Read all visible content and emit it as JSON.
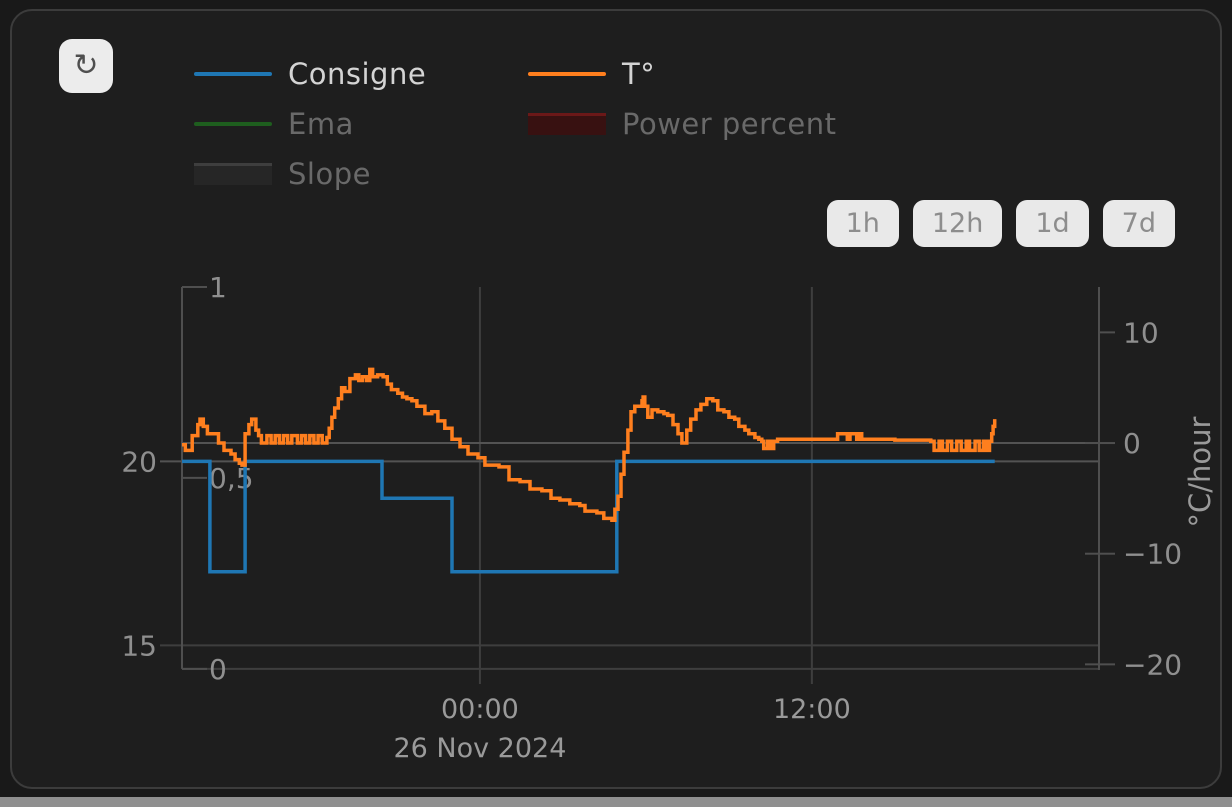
{
  "toolbar": {
    "refresh_icon": "↻",
    "ranges": [
      {
        "label": "1h"
      },
      {
        "label": "12h"
      },
      {
        "label": "1d"
      },
      {
        "label": "7d"
      }
    ]
  },
  "colors": {
    "card_bg": "#1e1e1e",
    "card_border": "#3c3c3c",
    "grid_major": "#535353",
    "grid_minor": "#3e3e3e",
    "axis_line": "#4f4f4f",
    "tick_label": "#8f8f8f",
    "x_label": "#9a9a9a",
    "legend_active_text": "#d4d4d4",
    "legend_dim_text": "#696969",
    "button_bg": "#e9e9e9",
    "button_text": "#8d8d8d",
    "page_strip": "#8f8f8f"
  },
  "chart_data": {
    "type": "line",
    "title": "",
    "x_axis": {
      "unit": "hours relative to 26 Nov 2024 00:00",
      "domain": [
        -10.77,
        22.38
      ],
      "ticks": [
        {
          "t": 0,
          "label": "00:00"
        },
        {
          "t": 12,
          "label": "12:00"
        }
      ],
      "date_label": "26 Nov 2024",
      "date_label_t": 0
    },
    "axes": {
      "temperature": {
        "side": "left",
        "unit": "°C",
        "domain": [
          14.33,
          24.74
        ],
        "ticks": [
          {
            "v": 20,
            "label": "20"
          },
          {
            "v": 15,
            "label": "15"
          }
        ]
      },
      "power": {
        "side": "left-inner",
        "unit": "fraction",
        "domain": [
          -0.003,
          1.0
        ],
        "ticks": [
          {
            "v": 1,
            "label": "1"
          },
          {
            "v": 0.5,
            "label": "0,5"
          },
          {
            "v": 0,
            "label": "0"
          }
        ]
      },
      "slope": {
        "side": "right",
        "unit": "°C/hour",
        "label": "°C/hour",
        "domain": [
          -20.51,
          14.1
        ],
        "ticks": [
          {
            "v": 10,
            "label": "10"
          },
          {
            "v": 0,
            "label": "0"
          },
          {
            "v": -10,
            "label": "−10"
          },
          {
            "v": -20,
            "label": "−20"
          }
        ]
      }
    },
    "gridlines": {
      "vertical_t": [
        0,
        12
      ],
      "horizontal": [
        {
          "axis": "slope",
          "v": 0,
          "major": true
        },
        {
          "axis": "temperature",
          "v": 20,
          "major": true
        },
        {
          "axis": "temperature",
          "v": 15,
          "major": false
        },
        {
          "axis": "power",
          "v": 0,
          "major": false
        }
      ]
    },
    "series": [
      {
        "name": "Consigne",
        "color": "#1f77b4",
        "axis": "temperature",
        "visible": true,
        "swatch": "line",
        "step": true,
        "points": [
          [
            -10.77,
            20
          ],
          [
            -9.76,
            20
          ],
          [
            -9.76,
            17
          ],
          [
            -8.49,
            17
          ],
          [
            -8.49,
            20
          ],
          [
            -3.54,
            20
          ],
          [
            -3.54,
            19
          ],
          [
            -1.01,
            19
          ],
          [
            -1.01,
            17
          ],
          [
            4.95,
            17
          ],
          [
            4.95,
            20
          ],
          [
            18.61,
            20
          ]
        ]
      },
      {
        "name": "T°",
        "color": "#ff7f1e",
        "axis": "temperature",
        "visible": true,
        "swatch": "line",
        "step": true,
        "points": [
          [
            -10.77,
            20.45
          ],
          [
            -10.65,
            20.3
          ],
          [
            -10.4,
            20.7
          ],
          [
            -10.2,
            21.0
          ],
          [
            -10.12,
            21.15
          ],
          [
            -10.0,
            20.95
          ],
          [
            -9.85,
            20.75
          ],
          [
            -9.6,
            20.75
          ],
          [
            -9.45,
            20.5
          ],
          [
            -9.25,
            20.3
          ],
          [
            -9.0,
            20.2
          ],
          [
            -8.85,
            20.05
          ],
          [
            -8.7,
            19.95
          ],
          [
            -8.6,
            19.9
          ],
          [
            -8.49,
            20.75
          ],
          [
            -8.35,
            21.0
          ],
          [
            -8.25,
            21.15
          ],
          [
            -8.1,
            20.85
          ],
          [
            -8.0,
            20.7
          ],
          [
            -7.9,
            20.5
          ],
          [
            -7.7,
            20.7
          ],
          [
            -7.55,
            20.5
          ],
          [
            -7.4,
            20.7
          ],
          [
            -7.25,
            20.5
          ],
          [
            -7.1,
            20.7
          ],
          [
            -6.95,
            20.5
          ],
          [
            -6.8,
            20.7
          ],
          [
            -6.6,
            20.5
          ],
          [
            -6.45,
            20.7
          ],
          [
            -6.3,
            20.5
          ],
          [
            -6.15,
            20.7
          ],
          [
            -6.0,
            20.5
          ],
          [
            -5.85,
            20.7
          ],
          [
            -5.7,
            20.5
          ],
          [
            -5.53,
            20.65
          ],
          [
            -5.45,
            20.9
          ],
          [
            -5.35,
            21.2
          ],
          [
            -5.25,
            21.45
          ],
          [
            -5.12,
            21.7
          ],
          [
            -5.0,
            22.0
          ],
          [
            -4.88,
            21.9
          ],
          [
            -4.7,
            22.25
          ],
          [
            -4.5,
            22.35
          ],
          [
            -4.38,
            22.2
          ],
          [
            -4.25,
            22.3
          ],
          [
            -4.1,
            22.2
          ],
          [
            -3.98,
            22.5
          ],
          [
            -3.88,
            22.3
          ],
          [
            -3.7,
            22.35
          ],
          [
            -3.5,
            22.3
          ],
          [
            -3.35,
            22.1
          ],
          [
            -3.2,
            21.95
          ],
          [
            -2.97,
            21.85
          ],
          [
            -2.8,
            21.75
          ],
          [
            -2.64,
            21.7
          ],
          [
            -2.46,
            21.65
          ],
          [
            -2.28,
            21.5
          ],
          [
            -1.99,
            21.3
          ],
          [
            -1.74,
            21.35
          ],
          [
            -1.52,
            21.1
          ],
          [
            -1.27,
            20.9
          ],
          [
            -1.01,
            20.6
          ],
          [
            -0.72,
            20.4
          ],
          [
            -0.43,
            20.2
          ],
          [
            -0.07,
            20.1
          ],
          [
            0.18,
            19.9
          ],
          [
            0.69,
            19.85
          ],
          [
            1.05,
            19.5
          ],
          [
            1.45,
            19.45
          ],
          [
            1.81,
            19.25
          ],
          [
            2.24,
            19.2
          ],
          [
            2.57,
            19.0
          ],
          [
            2.89,
            18.95
          ],
          [
            3.25,
            18.85
          ],
          [
            3.61,
            18.8
          ],
          [
            3.8,
            18.65
          ],
          [
            4.23,
            18.6
          ],
          [
            4.48,
            18.45
          ],
          [
            4.77,
            18.4
          ],
          [
            4.88,
            18.7
          ],
          [
            4.99,
            19.05
          ],
          [
            5.1,
            19.65
          ],
          [
            5.21,
            20.25
          ],
          [
            5.35,
            20.85
          ],
          [
            5.46,
            21.35
          ],
          [
            5.6,
            21.5
          ],
          [
            5.86,
            21.65
          ],
          [
            5.9,
            21.75
          ],
          [
            5.96,
            21.5
          ],
          [
            6.07,
            21.2
          ],
          [
            6.22,
            21.4
          ],
          [
            6.43,
            21.35
          ],
          [
            6.65,
            21.3
          ],
          [
            6.79,
            21.25
          ],
          [
            6.98,
            21.0
          ],
          [
            7.16,
            20.75
          ],
          [
            7.3,
            20.5
          ],
          [
            7.48,
            20.85
          ],
          [
            7.62,
            21.15
          ],
          [
            7.81,
            21.4
          ],
          [
            7.99,
            21.55
          ],
          [
            8.2,
            21.7
          ],
          [
            8.42,
            21.65
          ],
          [
            8.6,
            21.4
          ],
          [
            8.82,
            21.35
          ],
          [
            9.0,
            21.2
          ],
          [
            9.21,
            21.15
          ],
          [
            9.36,
            20.95
          ],
          [
            9.58,
            20.85
          ],
          [
            9.72,
            20.75
          ],
          [
            9.94,
            20.65
          ],
          [
            10.08,
            20.6
          ],
          [
            10.19,
            20.55
          ],
          [
            10.26,
            20.35
          ],
          [
            10.4,
            20.55
          ],
          [
            10.5,
            20.35
          ],
          [
            10.62,
            20.55
          ],
          [
            10.76,
            20.6
          ],
          [
            11.5,
            20.6
          ],
          [
            12.9,
            20.6
          ],
          [
            12.93,
            20.75
          ],
          [
            13.2,
            20.75
          ],
          [
            13.28,
            20.6
          ],
          [
            13.38,
            20.75
          ],
          [
            13.55,
            20.75
          ],
          [
            13.62,
            20.6
          ],
          [
            13.74,
            20.75
          ],
          [
            13.8,
            20.6
          ],
          [
            14.0,
            20.6
          ],
          [
            15.0,
            20.58
          ],
          [
            16.3,
            20.55
          ],
          [
            16.42,
            20.3
          ],
          [
            16.6,
            20.55
          ],
          [
            16.72,
            20.3
          ],
          [
            16.9,
            20.55
          ],
          [
            17.05,
            20.3
          ],
          [
            17.24,
            20.55
          ],
          [
            17.4,
            20.3
          ],
          [
            17.58,
            20.55
          ],
          [
            17.7,
            20.3
          ],
          [
            17.9,
            20.55
          ],
          [
            18.05,
            20.3
          ],
          [
            18.2,
            20.55
          ],
          [
            18.32,
            20.3
          ],
          [
            18.42,
            20.55
          ],
          [
            18.5,
            20.75
          ],
          [
            18.55,
            20.95
          ],
          [
            18.61,
            21.15
          ]
        ]
      },
      {
        "name": "Ema",
        "color": "#1e5e1e",
        "axis": "slope",
        "visible": false,
        "swatch": "line",
        "step": false,
        "points": []
      },
      {
        "name": "Power percent",
        "color": "#381111",
        "border_color": "#6b1818",
        "axis": "power",
        "visible": false,
        "swatch": "box",
        "step": true,
        "points": []
      },
      {
        "name": "Slope",
        "color": "#262626",
        "border_color": "#3e3e3e",
        "axis": "slope",
        "visible": false,
        "swatch": "box",
        "step": true,
        "points": []
      }
    ],
    "legend_position": "top-left",
    "grid": "partial"
  }
}
